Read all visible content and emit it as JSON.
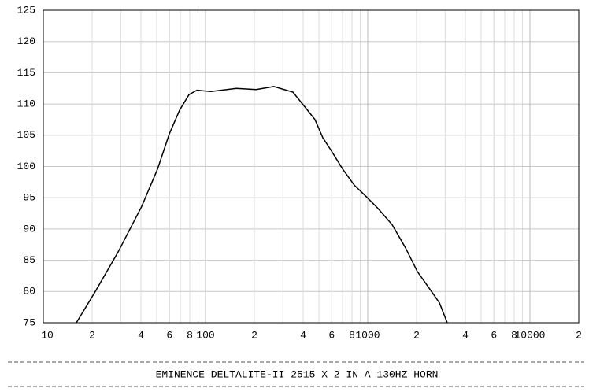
{
  "chart_data": {
    "type": "line",
    "title": "EMINENCE DELTALITE-II 2515 X 2 IN A 130HZ HORN",
    "x": [
      16,
      20.7,
      28.9,
      40.4,
      50.6,
      59.8,
      69.2,
      79.1,
      88.5,
      108,
      155,
      205,
      264,
      346,
      414,
      473,
      529,
      591,
      700,
      827,
      977,
      1156,
      1413,
      1709,
      2023,
      2473,
      2767,
      3093
    ],
    "values": [
      75,
      79.8,
      86.3,
      93.6,
      99.6,
      105.2,
      109.0,
      111.5,
      112.2,
      112.0,
      112.5,
      112.3,
      112.8,
      111.9,
      109.4,
      107.5,
      104.6,
      102.7,
      99.6,
      97.0,
      95.2,
      93.3,
      90.7,
      87.0,
      83.2,
      80.0,
      78.2,
      75
    ],
    "color": "#000000",
    "xlim": [
      10,
      20000
    ],
    "ylim": [
      75,
      125
    ],
    "log_x": true,
    "grid": true,
    "yticks": [
      75,
      80,
      85,
      90,
      95,
      100,
      105,
      110,
      115,
      120,
      125
    ],
    "xticks": [
      10,
      {
        "value": 20,
        "label": "2"
      },
      {
        "value": 40,
        "label": "4"
      },
      {
        "value": 60,
        "label": "6"
      },
      {
        "value": 80,
        "label": "8"
      },
      100,
      {
        "value": 200,
        "label": "2"
      },
      {
        "value": 400,
        "label": "4"
      },
      {
        "value": 600,
        "label": "6"
      },
      {
        "value": 800,
        "label": "8"
      },
      1000,
      {
        "value": 2000,
        "label": "2"
      },
      {
        "value": 4000,
        "label": "4"
      },
      {
        "value": 6000,
        "label": "6"
      },
      {
        "value": 8000,
        "label": "8"
      },
      10000,
      {
        "value": 20000,
        "label": "2"
      }
    ]
  }
}
